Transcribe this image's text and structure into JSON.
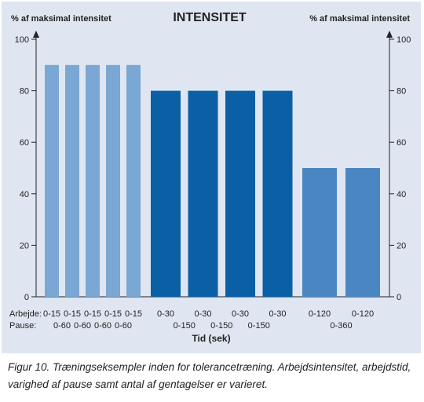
{
  "chart_data": {
    "type": "bar",
    "title": "INTENSITET",
    "ylabel_left": "% af maksimal intensitet",
    "ylabel_right": "% af maksimal intensitet",
    "xlabel": "Tid (sek)",
    "ylim": [
      0,
      100
    ],
    "yticks": [
      0,
      20,
      40,
      60,
      80,
      100
    ],
    "row_labels": {
      "work": "Arbejde:",
      "pause": "Pause:"
    },
    "groups": [
      {
        "color": "#7aa7d3",
        "bars": [
          {
            "value": 90,
            "work": "0-15",
            "pause": "0-60"
          },
          {
            "value": 90,
            "work": "0-15",
            "pause": "0-60"
          },
          {
            "value": 90,
            "work": "0-15",
            "pause": "0-60"
          },
          {
            "value": 90,
            "work": "0-15",
            "pause": "0-60"
          },
          {
            "value": 90,
            "work": "0-15",
            "pause": ""
          }
        ]
      },
      {
        "color": "#0b5fa5",
        "bars": [
          {
            "value": 80,
            "work": "0-30",
            "pause": "0-150"
          },
          {
            "value": 80,
            "work": "0-30",
            "pause": "0-150"
          },
          {
            "value": 80,
            "work": "0-30",
            "pause": "0-150"
          },
          {
            "value": 80,
            "work": "0-30",
            "pause": ""
          }
        ]
      },
      {
        "color": "#4a87c2",
        "bars": [
          {
            "value": 50,
            "work": "0-120",
            "pause": "0-360"
          },
          {
            "value": 50,
            "work": "0-120",
            "pause": ""
          }
        ]
      }
    ]
  },
  "caption": "Figur 10. Træningseksempler inden for tolerancetræning. Arbejdsintensitet, arbejdstid, varighed af pause samt antal af gentagelser er varieret."
}
